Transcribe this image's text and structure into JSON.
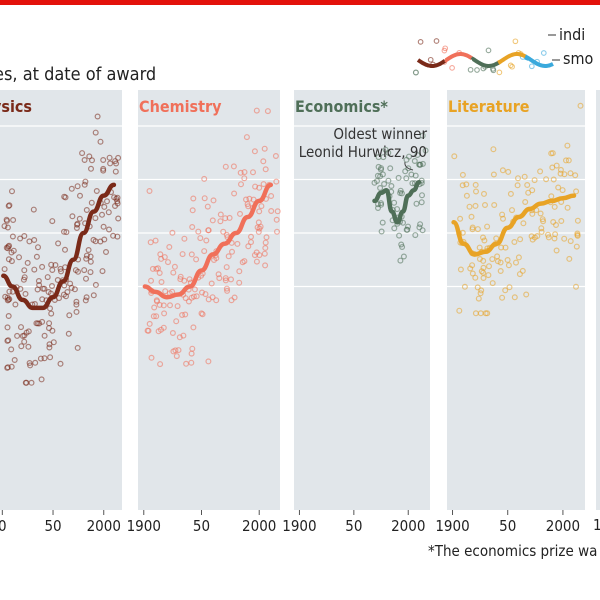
{
  "subtitle": "es, at date of award",
  "legend": {
    "individual": "indi",
    "smoothed": "smo"
  },
  "annotation": {
    "line1": "Oldest winner",
    "line2": "Leonid Hurwicz, 90"
  },
  "footnote": "*The economics prize wa",
  "right_edge_label": "1",
  "colors": {
    "top_rule": "#e3120b",
    "panel_bg": "#e1e6ea",
    "gridline": "#ffffff",
    "text": "#222222"
  },
  "chart_data": [
    {
      "type": "scatter",
      "title": "ysics",
      "color": "#7a2a19",
      "x_ticks": [
        "0",
        "50",
        "2000"
      ],
      "smooth": [
        [
          1901,
          52
        ],
        [
          1910,
          50
        ],
        [
          1920,
          47.5
        ],
        [
          1930,
          46
        ],
        [
          1940,
          46
        ],
        [
          1950,
          48
        ],
        [
          1960,
          51
        ],
        [
          1970,
          55
        ],
        [
          1980,
          60
        ],
        [
          1990,
          64
        ],
        [
          2000,
          67
        ],
        [
          2010,
          69
        ]
      ]
    },
    {
      "type": "scatter",
      "title": "Chemistry",
      "color": "#f0705a",
      "x_ticks": [
        "1900",
        "50",
        "2000"
      ],
      "smooth": [
        [
          1901,
          50
        ],
        [
          1910,
          49
        ],
        [
          1920,
          48
        ],
        [
          1930,
          48.5
        ],
        [
          1940,
          50
        ],
        [
          1950,
          53
        ],
        [
          1960,
          56
        ],
        [
          1970,
          58
        ],
        [
          1980,
          60
        ],
        [
          1990,
          63
        ],
        [
          2000,
          66
        ],
        [
          2010,
          69
        ]
      ]
    },
    {
      "type": "scatter",
      "title": "Economics*",
      "color": "#4f6f58",
      "x_ticks": [
        "1900",
        "50",
        "2000"
      ],
      "smooth": [
        [
          1969,
          66
        ],
        [
          1975,
          67.5
        ],
        [
          1980,
          68
        ],
        [
          1985,
          64
        ],
        [
          1990,
          62
        ],
        [
          1995,
          64
        ],
        [
          2000,
          67
        ],
        [
          2005,
          68
        ],
        [
          2010,
          69.5
        ]
      ]
    },
    {
      "type": "scatter",
      "title": "Literature",
      "color": "#e8a325",
      "x_ticks": [
        "1900",
        "50",
        "2000"
      ],
      "smooth": [
        [
          1901,
          62
        ],
        [
          1910,
          58
        ],
        [
          1920,
          56
        ],
        [
          1930,
          56.5
        ],
        [
          1940,
          58
        ],
        [
          1950,
          61
        ],
        [
          1960,
          63
        ],
        [
          1970,
          64.5
        ],
        [
          1980,
          65.5
        ],
        [
          1990,
          66
        ],
        [
          2000,
          66.5
        ],
        [
          2010,
          67
        ]
      ]
    }
  ]
}
